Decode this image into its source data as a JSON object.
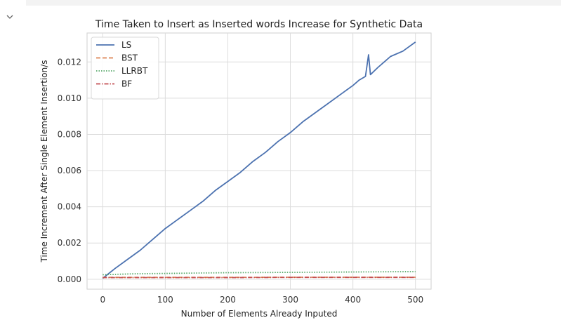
{
  "cell": {
    "toggle_icon": "chevron-down-icon"
  },
  "chart_data": {
    "type": "line",
    "title": "Time Taken to Insert as Inserted words Increase for Synthetic Data",
    "xlabel": "Number of Elements Already Inputed",
    "ylabel": "Time Increment After Single Element Insertion/s",
    "xlim": [
      -25,
      525
    ],
    "ylim": [
      -0.00055,
      0.0136
    ],
    "xticks": [
      0,
      100,
      200,
      300,
      400,
      500
    ],
    "xtick_labels": [
      "0",
      "100",
      "200",
      "300",
      "400",
      "500"
    ],
    "yticks": [
      0.0,
      0.002,
      0.004,
      0.006,
      0.008,
      0.01,
      0.012
    ],
    "ytick_labels": [
      "0.000",
      "0.002",
      "0.004",
      "0.006",
      "0.008",
      "0.010",
      "0.012"
    ],
    "grid": true,
    "legend_position": "top-left",
    "series": [
      {
        "name": "LS",
        "color": "#4c72b0",
        "style": "solid",
        "x": [
          0,
          20,
          40,
          60,
          80,
          100,
          120,
          140,
          160,
          180,
          200,
          220,
          240,
          260,
          280,
          300,
          320,
          340,
          360,
          380,
          400,
          410,
          420,
          425,
          428,
          440,
          450,
          460,
          480,
          500
        ],
        "y": [
          5e-05,
          0.0006,
          0.0011,
          0.0016,
          0.0022,
          0.0028,
          0.0033,
          0.0038,
          0.0043,
          0.0049,
          0.0054,
          0.0059,
          0.0065,
          0.007,
          0.0076,
          0.0081,
          0.0087,
          0.0092,
          0.0097,
          0.0102,
          0.0107,
          0.011,
          0.0112,
          0.0124,
          0.0113,
          0.0117,
          0.012,
          0.0123,
          0.0126,
          0.0131
        ]
      },
      {
        "name": "BST",
        "color": "#dd8452",
        "style": "dashed",
        "x": [
          0,
          100,
          200,
          300,
          400,
          500
        ],
        "y": [
          0.0001,
          0.0001,
          0.0001,
          0.00011,
          0.00011,
          0.00011
        ]
      },
      {
        "name": "LLRBT",
        "color": "#55a868",
        "style": "dotted",
        "x": [
          0,
          50,
          100,
          150,
          200,
          250,
          300,
          350,
          400,
          450,
          500
        ],
        "y": [
          0.00025,
          0.0003,
          0.00032,
          0.00034,
          0.00036,
          0.00037,
          0.00038,
          0.00039,
          0.0004,
          0.00041,
          0.00042
        ]
      },
      {
        "name": "BF",
        "color": "#c44e52",
        "style": "dashdot",
        "x": [
          0,
          100,
          200,
          300,
          400,
          500
        ],
        "y": [
          9e-05,
          9e-05,
          9e-05,
          0.0001,
          0.0001,
          0.0001
        ]
      }
    ]
  }
}
